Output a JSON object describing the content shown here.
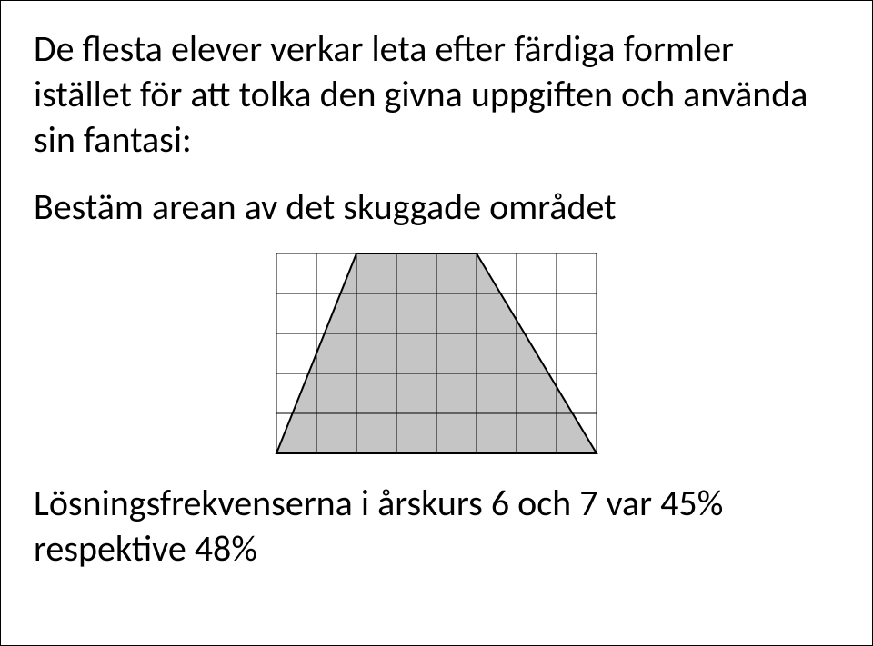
{
  "paragraph1": "De flesta elever verkar leta efter färdiga formler istället för att tolka den givna uppgiften och använda sin fantasi:",
  "paragraph2": "Bestäm arean av det skuggade området",
  "paragraph3": "Lösningsfrekvenserna i årskurs 6 och 7 var 45% respektive 48%",
  "diagram": {
    "type": "infographic",
    "grid_cols": 8,
    "grid_rows": 5,
    "cell_size": 44,
    "background_color": "#ffffff",
    "grid_color": "#000000",
    "grid_stroke_width": 1,
    "shape": "trapezoid",
    "shape_fill": "#c5c5c5",
    "shape_stroke": "#000000",
    "shape_stroke_width": 2,
    "trapezoid_top_left_col": 2,
    "trapezoid_top_right_col": 5,
    "trapezoid_bottom_left_col": 0,
    "trapezoid_bottom_right_col": 8
  }
}
